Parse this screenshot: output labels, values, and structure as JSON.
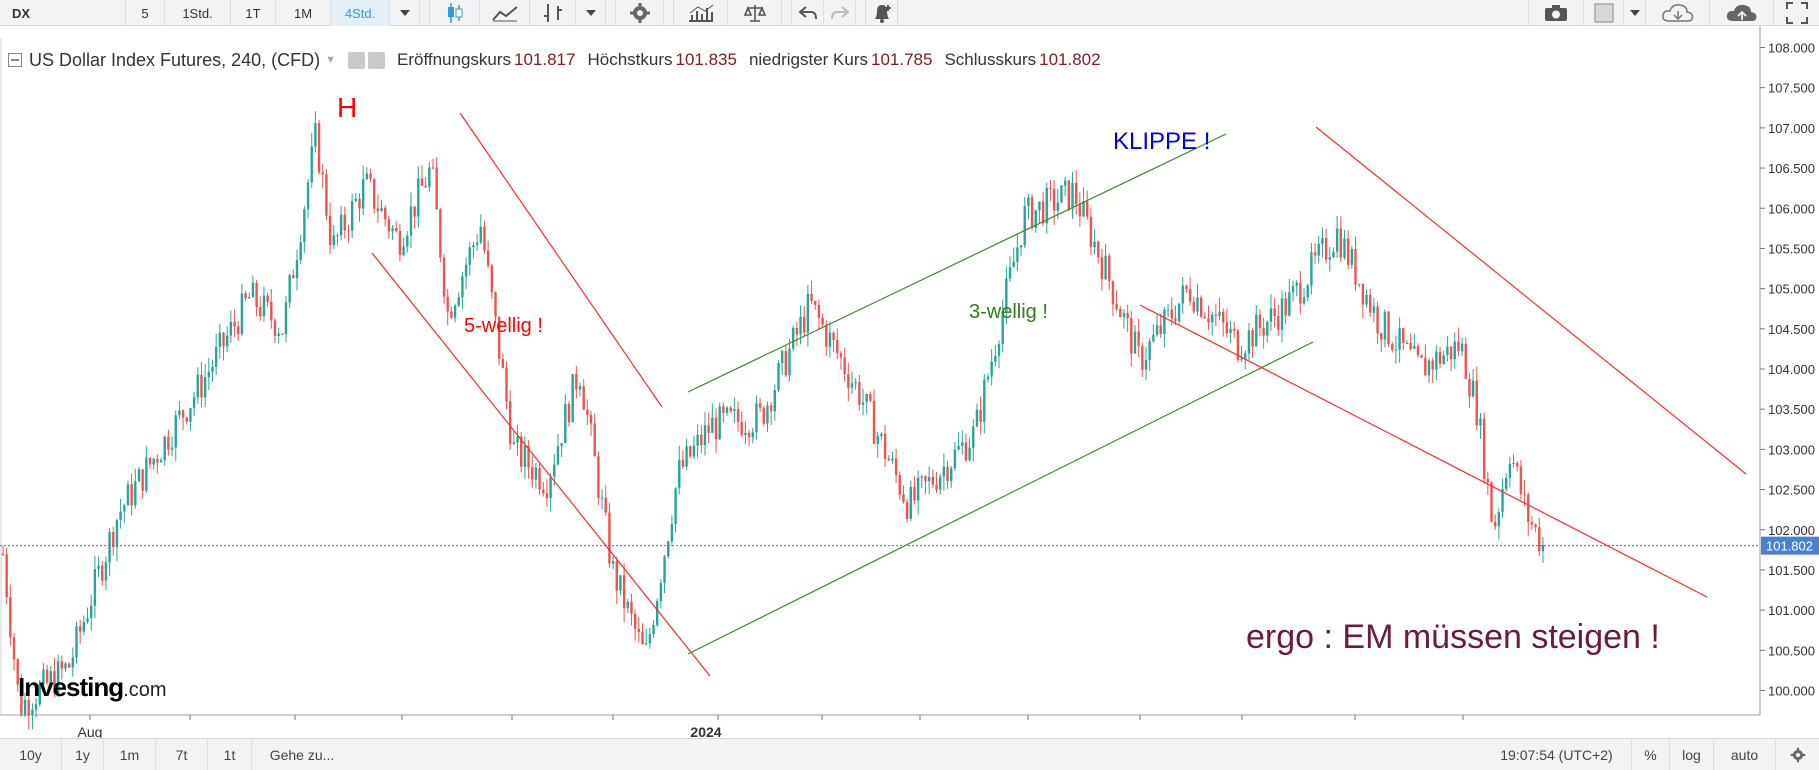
{
  "toolbar": {
    "symbol": "DX",
    "intervals": [
      "5",
      "1Std.",
      "1T",
      "1M",
      "4Std."
    ],
    "active_interval": "4Std."
  },
  "legend": {
    "title": "US Dollar Index Futures, 240, (CFD)",
    "open_label": "Eröffnungskurs",
    "open_value": "101.817",
    "high_label": "Höchstkurs",
    "high_value": "101.835",
    "low_label": "niedrigster Kurs",
    "low_value": "101.785",
    "close_label": "Schlusskurs",
    "close_value": "101.802"
  },
  "logo": {
    "main": "Investing",
    "suffix": ".com"
  },
  "bottombar": {
    "ranges": [
      "10y",
      "1y",
      "1m",
      "7t",
      "1t"
    ],
    "goto_label": "Gehe zu...",
    "clock": "19:07:54 (UTC+2)",
    "percent": "%",
    "log": "log",
    "auto": "auto"
  },
  "colors": {
    "up": "#26a69a",
    "down": "#ef5350",
    "red_line": "#ff2a2a",
    "green_line": "#3c8a2e",
    "price_line": "#3d6ed6",
    "price_badge": "#4a7fd6",
    "annotation_red": "#ff0000",
    "annotation_blue": "#0000dd",
    "annotation_green": "#2f7d1e",
    "annotation_purple": "#6b1a40"
  },
  "chart_data": {
    "type": "candlestick",
    "title": "US Dollar Index Futures, 240, (CFD)",
    "ylim": [
      99.65,
      108.15
    ],
    "y_ticks": [
      "108.000",
      "107.500",
      "107.000",
      "106.500",
      "106.000",
      "105.500",
      "105.000",
      "104.500",
      "104.000",
      "103.500",
      "103.000",
      "102.500",
      "102.000",
      "101.500",
      "101.000",
      "100.500",
      "100.000"
    ],
    "x_labels": [
      "Aug",
      "2024"
    ],
    "last_price": "101.802",
    "price_path": [
      [
        0,
        101.7
      ],
      [
        0.01,
        99.8
      ],
      [
        0.04,
        100.3
      ],
      [
        0.07,
        102.2
      ],
      [
        0.12,
        103.8
      ],
      [
        0.15,
        104.9
      ],
      [
        0.17,
        104.5
      ],
      [
        0.19,
        106.9
      ],
      [
        0.2,
        105.5
      ],
      [
        0.22,
        106.3
      ],
      [
        0.24,
        105.6
      ],
      [
        0.26,
        106.5
      ],
      [
        0.27,
        104.7
      ],
      [
        0.29,
        105.8
      ],
      [
        0.31,
        103.0
      ],
      [
        0.33,
        102.6
      ],
      [
        0.35,
        104.0
      ],
      [
        0.37,
        101.5
      ],
      [
        0.39,
        100.4
      ],
      [
        0.41,
        102.7
      ],
      [
        0.43,
        103.3
      ],
      [
        0.46,
        103.4
      ],
      [
        0.49,
        104.8
      ],
      [
        0.52,
        103.7
      ],
      [
        0.55,
        102.3
      ],
      [
        0.59,
        103.2
      ],
      [
        0.62,
        105.9
      ],
      [
        0.65,
        106.2
      ],
      [
        0.67,
        105.2
      ],
      [
        0.69,
        104.1
      ],
      [
        0.72,
        105.0
      ],
      [
        0.75,
        104.3
      ],
      [
        0.78,
        104.8
      ],
      [
        0.81,
        105.7
      ],
      [
        0.835,
        104.6
      ],
      [
        0.86,
        104.0
      ],
      [
        0.885,
        104.3
      ],
      [
        0.895,
        103.5
      ],
      [
        0.905,
        102.0
      ],
      [
        0.915,
        103.0
      ],
      [
        0.925,
        102.2
      ],
      [
        0.935,
        101.8
      ]
    ]
  },
  "annotations": {
    "head": "H",
    "five_wave": "5-wellig !",
    "three_wave": "3-wellig !",
    "cliff": "KLIPPE !",
    "conclusion": "ergo : EM müssen steigen !"
  }
}
